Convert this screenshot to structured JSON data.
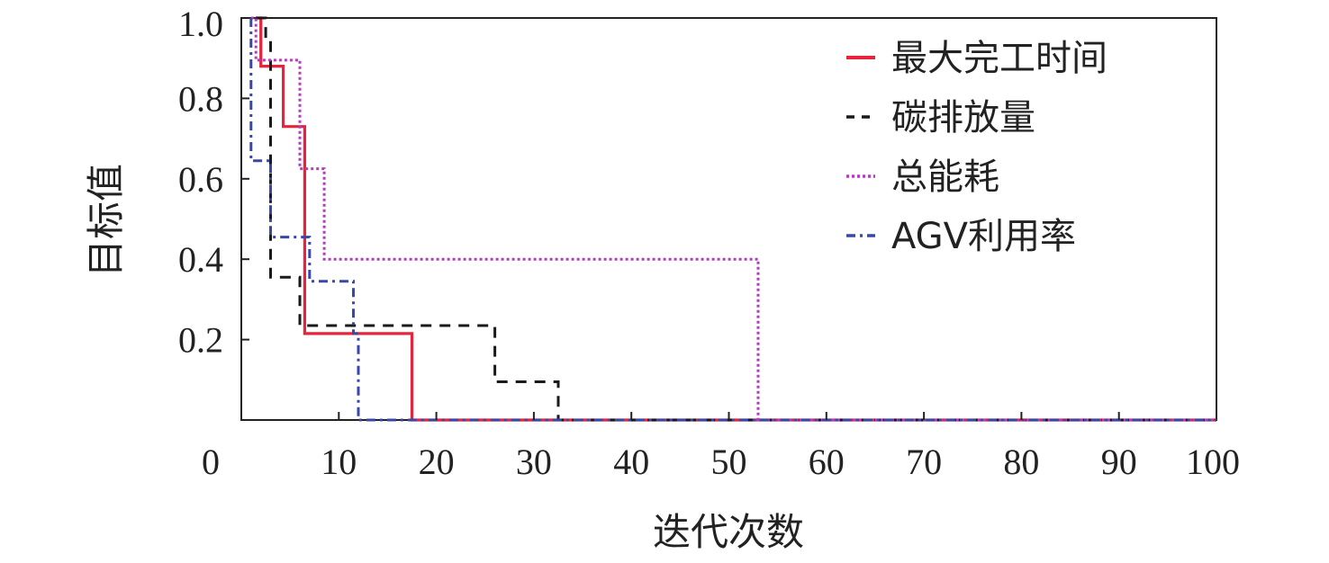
{
  "chart_data": {
    "type": "line",
    "title": "",
    "xlabel": "迭代次数",
    "ylabel": "目标值",
    "xlim": [
      0,
      100
    ],
    "ylim": [
      0,
      1.0
    ],
    "xticks": [
      0,
      10,
      20,
      30,
      40,
      50,
      60,
      70,
      80,
      90,
      100
    ],
    "xtick_labels": [
      "0",
      "10",
      "20",
      "30",
      "40",
      "50",
      "60",
      "70",
      "80",
      "90",
      "100"
    ],
    "yticks": [
      0.2,
      0.4,
      0.6,
      0.8,
      1.0
    ],
    "ytick_labels": [
      "0.2",
      "0.4",
      "0.6",
      "0.8",
      "1.0"
    ],
    "grid": false,
    "legend_position": "top-right",
    "series": [
      {
        "name": "最大完工时间",
        "color": "#e8243c",
        "style": "solid",
        "x": [
          1.5,
          2.0,
          2.0,
          4.3,
          4.3,
          6.0,
          6.0,
          6.5,
          6.5,
          17.5,
          17.5,
          100
        ],
        "y": [
          1.0,
          1.0,
          0.88,
          0.88,
          0.73,
          0.73,
          0.73,
          0.73,
          0.215,
          0.215,
          0.0,
          0.0
        ]
      },
      {
        "name": "碳排放量",
        "color": "#1a1a1a",
        "style": "dashed",
        "x": [
          1.5,
          2.5,
          2.5,
          3.0,
          3.0,
          4.5,
          4.5,
          6.0,
          6.0,
          26.0,
          26.0,
          31.5,
          31.5,
          32.5,
          32.5,
          100
        ],
        "y": [
          1.0,
          1.0,
          0.95,
          0.95,
          0.355,
          0.355,
          0.355,
          0.355,
          0.235,
          0.235,
          0.095,
          0.095,
          0.095,
          0.095,
          0.0,
          0.0
        ]
      },
      {
        "name": "总能耗",
        "color": "#b43cbe",
        "style": "dotted",
        "x": [
          1.0,
          1.5,
          1.5,
          6.0,
          6.0,
          8.5,
          8.5,
          53.0,
          53.0,
          100
        ],
        "y": [
          1.0,
          1.0,
          0.895,
          0.895,
          0.625,
          0.625,
          0.4,
          0.4,
          0.0,
          0.0
        ]
      },
      {
        "name": "AGV利用率",
        "color": "#3848a8",
        "style": "dashdot",
        "x": [
          1.0,
          1.0,
          1.0,
          3.0,
          3.0,
          7.0,
          7.0,
          11.5,
          11.5,
          12.0,
          12.0,
          100
        ],
        "y": [
          1.0,
          0.645,
          0.645,
          0.645,
          0.455,
          0.455,
          0.345,
          0.345,
          0.215,
          0.215,
          0.0,
          0.0
        ]
      }
    ]
  }
}
